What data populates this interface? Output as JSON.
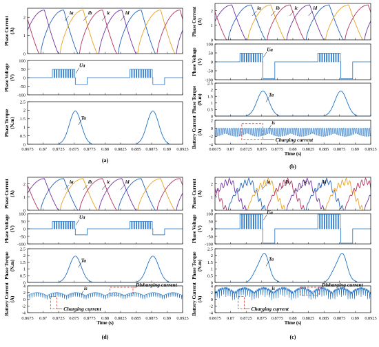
{
  "colors": {
    "ia": "#7030a0",
    "ib": "#1f5fbf",
    "ic": "#e8a020",
    "id": "#b03060",
    "blue": "#1a6fc4",
    "highlight": "#d9342b"
  },
  "chart_data": [
    {
      "panel": "(a)",
      "type": "line",
      "xlabel": "",
      "x_ticks": [
        "0.8675",
        "0.87",
        "0.8725",
        "0.875",
        "0.8775",
        "0.88",
        "0.8825",
        "0.885",
        "0.8875",
        "0.89",
        "0.8925"
      ],
      "subplots": [
        {
          "ylabel": "Phase Current (A)",
          "ylim": [
            0,
            2.5
          ],
          "y_ticks": [
            "0",
            "1",
            "2"
          ],
          "series": [
            {
              "name": "ia"
            },
            {
              "name": "ib"
            },
            {
              "name": "ic"
            },
            {
              "name": "id"
            }
          ],
          "peak": 2.4
        },
        {
          "ylabel": "Phase Voltage (V)",
          "ylim": [
            -100,
            100
          ],
          "y_ticks": [
            "-100",
            "-50",
            "0",
            "50",
            "100"
          ],
          "series": [
            {
              "name": "Ua"
            }
          ],
          "values": {
            "pwm_high": 48,
            "demag": -40
          }
        },
        {
          "ylabel": "Phase Torque (N.m)",
          "ylim": [
            0,
            2.5
          ],
          "y_ticks": [
            "0",
            "0.5",
            "1",
            "1.5",
            "2",
            "2.5"
          ],
          "series": [
            {
              "name": "Ta"
            }
          ],
          "peak": 1.95
        }
      ]
    },
    {
      "panel": "(b)",
      "type": "line",
      "xlabel": "Time (s)",
      "x_ticks": [
        "0.8675",
        "0.87",
        "0.8725",
        "0.875",
        "0.8775",
        "0.88",
        "0.8825",
        "0.885",
        "0.8875",
        "0.89",
        "0.8925"
      ],
      "subplots": [
        {
          "ylabel": "Phase Current (A)",
          "ylim": [
            0,
            2.5
          ],
          "y_ticks": [
            "0",
            "1",
            "2"
          ],
          "series": [
            {
              "name": "ia"
            },
            {
              "name": "ib"
            },
            {
              "name": "ic"
            },
            {
              "name": "id"
            }
          ],
          "peak": 2.4
        },
        {
          "ylabel": "Phase Voltage (V)",
          "ylim": [
            -100,
            100
          ],
          "y_ticks": [
            "-100",
            "-50",
            "0",
            "50",
            "100"
          ],
          "series": [
            {
              "name": "Ua"
            }
          ],
          "values": {
            "pwm_high": 48,
            "demag": -95
          }
        },
        {
          "ylabel": "Phase Torque (N.m)",
          "ylim": [
            0,
            2.5
          ],
          "y_ticks": [
            "0",
            "0.5",
            "1",
            "1.5",
            "2",
            "2.5"
          ],
          "series": [
            {
              "name": "Ta"
            }
          ],
          "peak": 1.9
        },
        {
          "ylabel": "Battery Current (A)",
          "ylim": [
            -4,
            2
          ],
          "y_ticks": [
            "-4",
            "-2",
            "0",
            "2"
          ],
          "series": [
            {
              "name": "is"
            }
          ],
          "annotation": "Charging current",
          "values": {
            "spike_min": -2.6
          }
        }
      ]
    },
    {
      "panel": "(d)",
      "type": "line",
      "xlabel": "Time (s)",
      "x_ticks": [
        "0.8675",
        "0.87",
        "0.8725",
        "0.875",
        "0.8775",
        "0.88",
        "0.8825",
        "0.885",
        "0.8875",
        "0.89",
        "0.8925"
      ],
      "subplots": [
        {
          "ylabel": "Phase Current (A)",
          "ylim": [
            0,
            2.5
          ],
          "y_ticks": [
            "0",
            "1",
            "2"
          ],
          "series": [
            {
              "name": "ia"
            },
            {
              "name": "ib"
            },
            {
              "name": "ic"
            },
            {
              "name": "id"
            }
          ],
          "peak": 2.4
        },
        {
          "ylabel": "Phase Voltage (V)",
          "ylim": [
            -100,
            100
          ],
          "y_ticks": [
            "-100",
            "-50",
            "0",
            "50",
            "100"
          ],
          "series": [
            {
              "name": "Ua"
            }
          ],
          "values": {
            "pwm_high": 48,
            "demag": -40
          }
        },
        {
          "ylabel": "Phase Torque (N.m)",
          "ylim": [
            0,
            2.5
          ],
          "y_ticks": [
            "0",
            "0.5",
            "1",
            "1.5",
            "2",
            "2.5"
          ],
          "series": [
            {
              "name": "Ta"
            }
          ],
          "peak": 1.95
        },
        {
          "ylabel": "Battery Current (A)",
          "ylim": [
            -4,
            4
          ],
          "y_ticks": [
            "-4",
            "-2",
            "0",
            "2",
            "4"
          ],
          "series": [
            {
              "name": "is"
            }
          ],
          "annotations": [
            "Disharging current",
            "Charging current"
          ],
          "values": {
            "mean": 1.4
          }
        }
      ]
    },
    {
      "panel": "(c)",
      "type": "line",
      "xlabel": "Time (s)",
      "x_ticks": [
        "0.8675",
        "0.87",
        "0.8725",
        "0.875",
        "0.8775",
        "0.88",
        "0.8825",
        "0.885",
        "0.8875",
        "0.89",
        "0.8925"
      ],
      "subplots": [
        {
          "ylabel": "Phase Current (A)",
          "ylim": [
            0,
            2.5
          ],
          "y_ticks": [
            "0",
            "1",
            "2"
          ],
          "series": [
            {
              "name": "ia"
            },
            {
              "name": "ib"
            },
            {
              "name": "ic"
            },
            {
              "name": "id"
            }
          ],
          "peak": 2.2
        },
        {
          "ylabel": "Phase Voltage (V)",
          "ylim": [
            -100,
            100
          ],
          "y_ticks": [
            "-100",
            "-50",
            "0",
            "50",
            "100"
          ],
          "series": [
            {
              "name": "Ua"
            }
          ],
          "values": {
            "pwm_high": 95,
            "demag": -95
          }
        },
        {
          "ylabel": "Phase Torque (N.m)",
          "ylim": [
            0,
            2.5
          ],
          "y_ticks": [
            "0",
            "0.5",
            "1",
            "1.5",
            "2",
            "2.5"
          ],
          "series": [
            {
              "name": "Ta"
            }
          ],
          "peak": 2.1
        },
        {
          "ylabel": "Battery Current (A)",
          "ylim": [
            -4,
            4
          ],
          "y_ticks": [
            "-4",
            "-2",
            "0",
            "2",
            "4"
          ],
          "series": [
            {
              "name": "is"
            }
          ],
          "annotations": [
            "Disharging current",
            "Charging current"
          ],
          "values": {
            "mean": 2.2
          }
        }
      ]
    }
  ]
}
